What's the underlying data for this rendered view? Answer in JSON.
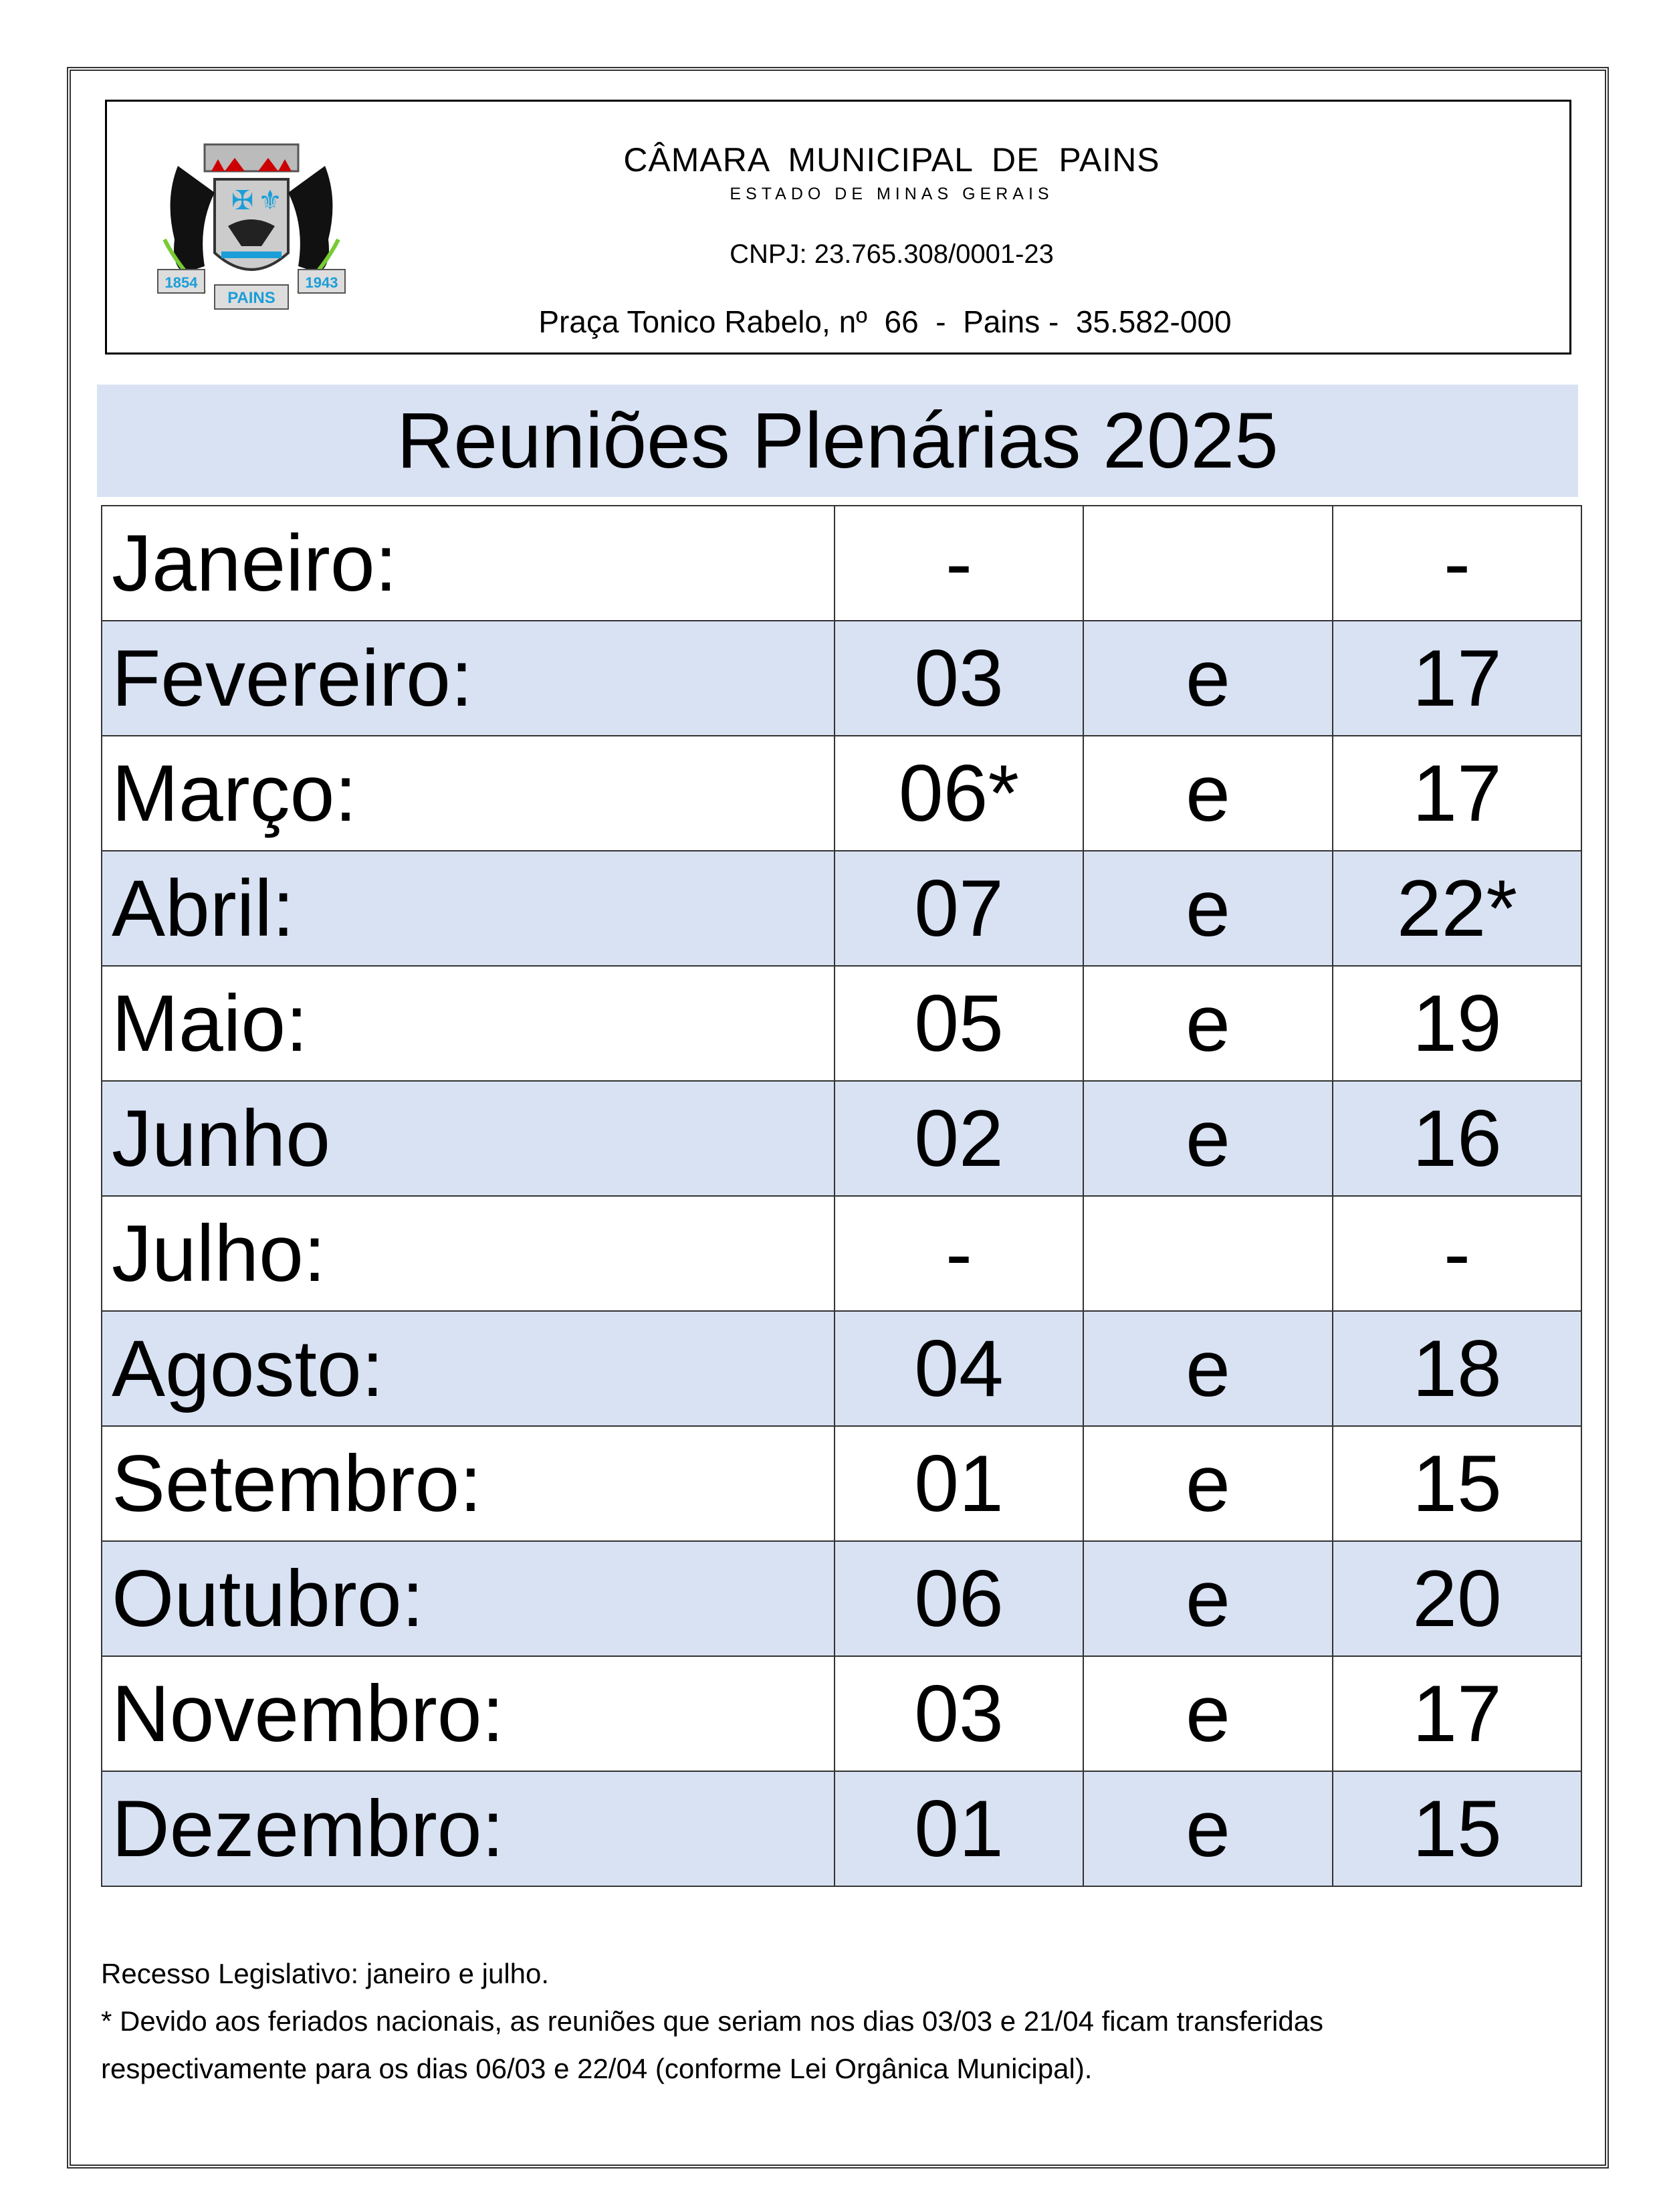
{
  "header": {
    "title": "CÂMARA  MUNICIPAL  DE   PAINS",
    "subtitle": "ESTADO DE MINAS GERAIS",
    "cnpj": "CNPJ: 23.765.308/0001-23",
    "address": "Praça Tonico Rabelo, nº  66  -  Pains -  35.582-000",
    "logo_text": {
      "left_year": "1854",
      "right_year": "1943",
      "ribbon": "PAINS"
    }
  },
  "title": "Reuniões Plenárias 2025",
  "schedule": [
    {
      "month": "Janeiro:",
      "first": "-",
      "sep": "",
      "second": "-"
    },
    {
      "month": "Fevereiro:",
      "first": "03",
      "sep": "e",
      "second": "17"
    },
    {
      "month": "Março:",
      "first": "06*",
      "sep": "e",
      "second": "17"
    },
    {
      "month": "Abril:",
      "first": "07",
      "sep": "e",
      "second": "22*"
    },
    {
      "month": "Maio:",
      "first": "05",
      "sep": "e",
      "second": "19"
    },
    {
      "month": "Junho",
      "first": "02",
      "sep": "e",
      "second": "16"
    },
    {
      "month": "Julho:",
      "first": "-",
      "sep": "",
      "second": "-"
    },
    {
      "month": "Agosto:",
      "first": "04",
      "sep": "e",
      "second": "18"
    },
    {
      "month": "Setembro:",
      "first": "01",
      "sep": "e",
      "second": "15"
    },
    {
      "month": "Outubro:",
      "first": "06",
      "sep": "e",
      "second": "20"
    },
    {
      "month": "Novembro:",
      "first": "03",
      "sep": "e",
      "second": "17"
    },
    {
      "month": "Dezembro:",
      "first": "01",
      "sep": "e",
      "second": "15"
    }
  ],
  "notes": [
    "Recesso Legislativo:  janeiro e julho.",
    "* Devido aos feriados nacionais, as reuniões que seriam nos dias 03/03 e 21/04 ficam transferidas",
    "respectivamente para os dias 06/03 e 22/04 (conforme Lei Orgânica Municipal)."
  ],
  "colors": {
    "band": "#d9e2f3",
    "border": "#333333"
  }
}
